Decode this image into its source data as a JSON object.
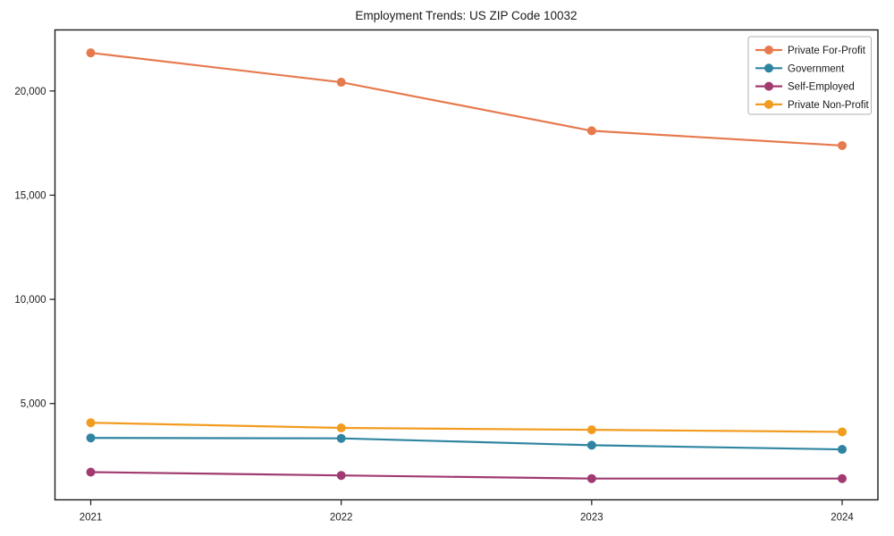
{
  "figure": {
    "background": "#ffffff",
    "axis_color": "#1a1a1a",
    "legend_border_color": "#b0b0b0"
  },
  "chart_data": {
    "type": "line",
    "title": "Employment Trends: US ZIP Code 10032",
    "xlabel": "",
    "ylabel": "",
    "x": [
      2021,
      2022,
      2023,
      2024
    ],
    "xtick_labels": [
      "2021",
      "2022",
      "2023",
      "2024"
    ],
    "ytick_values": [
      5000,
      10000,
      15000,
      20000
    ],
    "ytick_labels": [
      "5,000",
      "10,000",
      "15,000",
      "20,000"
    ],
    "xlim": [
      2020.86,
      2024.14
    ],
    "ylim": [
      380,
      22930
    ],
    "grid": false,
    "legend_position": "upper right",
    "series": [
      {
        "name": "Private For-Profit",
        "color": "#E67A4E",
        "values": [
          21830,
          20420,
          18090,
          17380
        ]
      },
      {
        "name": "Government",
        "color": "#2F85A1",
        "values": [
          3350,
          3330,
          3000,
          2800
        ]
      },
      {
        "name": "Self-Employed",
        "color": "#A03A70",
        "values": [
          1710,
          1550,
          1400,
          1400
        ]
      },
      {
        "name": "Private Non-Profit",
        "color": "#F29C1F",
        "values": [
          4080,
          3830,
          3740,
          3640
        ]
      }
    ]
  }
}
